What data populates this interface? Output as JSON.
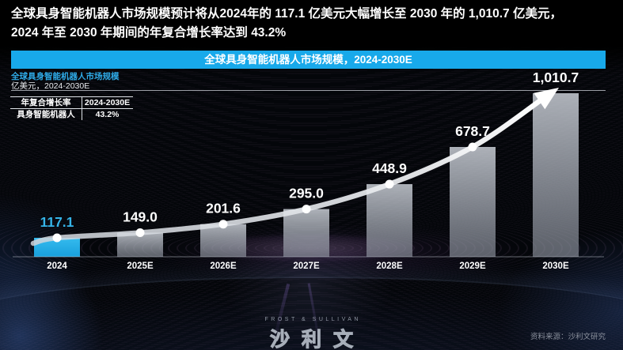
{
  "headline": {
    "line1": "全球具身智能机器人市场规模预计将从2024年的 117.1 亿美元大幅增长至 2030 年的 1,010.7 亿美元，",
    "line2": "2024 年至 2030 年期间的年复合增长率达到 43.2%"
  },
  "banner": {
    "title": "全球具身智能机器人市场规模，2024-2030E"
  },
  "chart_header": {
    "title": "全球具身智能机器人市场规模",
    "unit": "亿美元，2024-2030E"
  },
  "cagr_table": {
    "header": [
      "年复合增长率",
      "2024-2030E"
    ],
    "row": [
      "具身智能机器人",
      "43.2%"
    ]
  },
  "chart_data": {
    "type": "bar",
    "title": "全球具身智能机器人市场规模，2024-2030E",
    "ylabel": "亿美元",
    "categories": [
      "2024",
      "2025E",
      "2026E",
      "2027E",
      "2028E",
      "2029E",
      "2030E"
    ],
    "values": [
      117.1,
      149.0,
      201.6,
      295.0,
      448.9,
      678.7,
      1010.7
    ],
    "labels": [
      "117.1",
      "149.0",
      "201.6",
      "295.0",
      "448.9",
      "678.7",
      "1,010.7"
    ],
    "highlight_index": 0,
    "cagr_2024_2030E": "43.2%",
    "ylim": [
      0,
      1050
    ],
    "grid": false,
    "trend_line": true,
    "legend": "none"
  },
  "colors": {
    "accent": "#18a9ea",
    "accent2": "#2fabe8",
    "highlight_bar_top": "#35bbee",
    "highlight_bar_bottom": "#189fdc",
    "highlight_label": "#35b4e8",
    "value_label": "#ffffff",
    "trend_line": "#ffffff"
  },
  "logo": {
    "top": "FROST & SULLIVAN",
    "name": "沙利文"
  },
  "source": {
    "text": "资料来源：沙利文研究"
  }
}
